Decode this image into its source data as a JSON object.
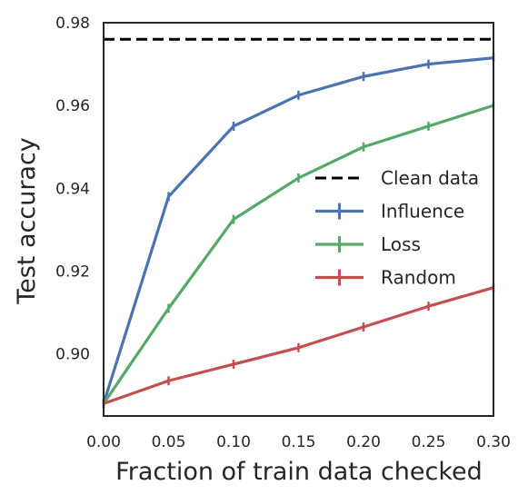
{
  "chart_data": {
    "type": "line",
    "xlabel": "Fraction of train data checked",
    "ylabel": "Test accuracy",
    "xlim": [
      0.0,
      0.3
    ],
    "ylim": [
      0.885,
      0.98
    ],
    "xticks": [
      "0.00",
      "0.05",
      "0.10",
      "0.15",
      "0.20",
      "0.25",
      "0.30"
    ],
    "yticks": [
      "0.90",
      "0.92",
      "0.94",
      "0.96",
      "0.98"
    ],
    "grid": false,
    "legend_position": "center-right",
    "x": [
      0.0,
      0.05,
      0.1,
      0.15,
      0.2,
      0.25,
      0.3
    ],
    "reference_line": {
      "name": "Clean data",
      "y": 0.976,
      "color": "#000000",
      "style": "dashed"
    },
    "series": [
      {
        "name": "Influence",
        "color": "#4c72b0",
        "values": [
          0.888,
          0.938,
          0.955,
          0.9625,
          0.967,
          0.97,
          0.9715
        ]
      },
      {
        "name": "Loss",
        "color": "#55a868",
        "values": [
          0.888,
          0.911,
          0.9325,
          0.9425,
          0.95,
          0.955,
          0.96
        ]
      },
      {
        "name": "Random",
        "color": "#c44e52",
        "values": [
          0.888,
          0.8935,
          0.8975,
          0.9015,
          0.9065,
          0.9115,
          0.916
        ]
      }
    ]
  }
}
